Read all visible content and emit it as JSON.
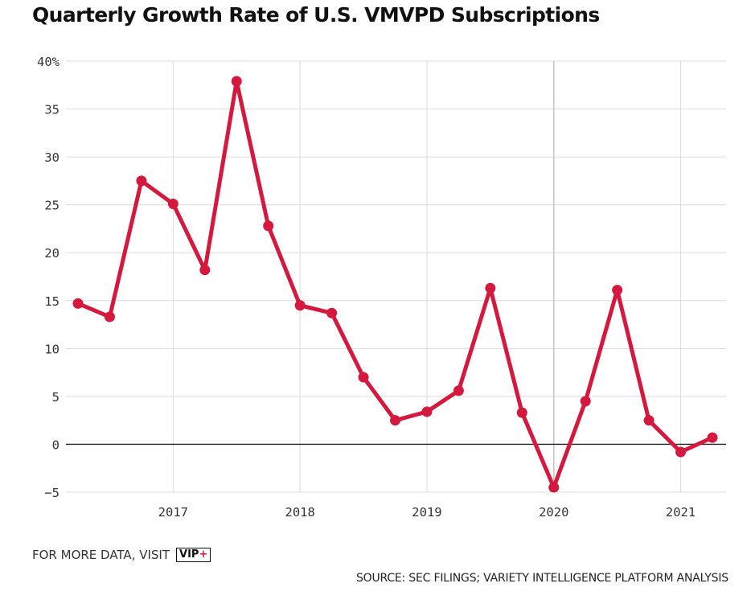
{
  "chart_data": {
    "type": "line",
    "title": "Quarterly Growth Rate of U.S. VMVPD Subscriptions",
    "xlabel": "",
    "ylabel": "",
    "x": [
      "2016-Q2",
      "2016-Q3",
      "2016-Q4",
      "2017-Q1",
      "2017-Q2",
      "2017-Q3",
      "2017-Q4",
      "2018-Q1",
      "2018-Q2",
      "2018-Q3",
      "2018-Q4",
      "2019-Q1",
      "2019-Q2",
      "2019-Q3",
      "2019-Q4",
      "2020-Q1",
      "2020-Q2",
      "2020-Q3",
      "2020-Q4",
      "2021-Q1",
      "2021-Q2"
    ],
    "series": [
      {
        "values": [
          14.7,
          13.3,
          27.5,
          25.1,
          18.2,
          37.9,
          22.8,
          14.5,
          13.7,
          7.0,
          2.5,
          3.4,
          5.6,
          16.3,
          3.3,
          -4.5,
          4.5,
          16.1,
          2.5,
          -0.8,
          0.7
        ],
        "color": "#d4183e"
      }
    ],
    "ylim": [
      -5,
      40
    ],
    "yticks": [
      -5,
      0,
      5,
      10,
      15,
      20,
      25,
      30,
      35,
      40
    ],
    "ytick_labels": [
      "−5",
      "0",
      "5",
      "10",
      "15",
      "20",
      "25",
      "30",
      "35",
      "40%"
    ],
    "xticks": [
      "2017",
      "2018",
      "2019",
      "2020",
      "2021"
    ],
    "grid": true,
    "legend": "none"
  },
  "footer": {
    "more_data_text": "FOR MORE DATA, VISIT",
    "vip_badge_main": "VIP",
    "vip_badge_accent": "+",
    "source_text": "SOURCE: SEC FILINGS; VARIETY INTELLIGENCE PLATFORM ANALYSIS"
  }
}
